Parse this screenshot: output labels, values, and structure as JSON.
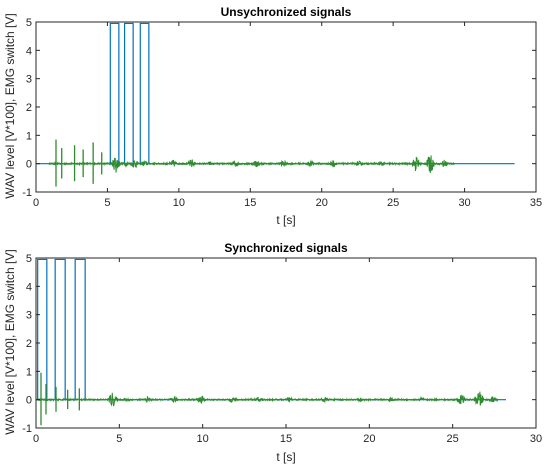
{
  "chart_data": [
    {
      "type": "line",
      "title": "Unsychronized signals",
      "xlabel": "t [s]",
      "ylabel": "WAV level [V*100], EMG switch [V]",
      "xlim": [
        0,
        35
      ],
      "ylim": [
        -1,
        5
      ],
      "xticks": [
        0,
        5,
        10,
        15,
        20,
        25,
        30,
        35
      ],
      "yticks": [
        -1,
        0,
        1,
        2,
        3,
        4,
        5
      ],
      "grid": false,
      "series": [
        {
          "color": "#0072bd",
          "x": [
            0,
            5.2,
            5.2,
            5.8,
            5.8,
            6.2,
            6.2,
            6.8,
            6.8,
            7.3,
            7.3,
            7.9,
            7.9,
            33.5
          ],
          "y": [
            0,
            0,
            4.95,
            4.95,
            0,
            0,
            4.95,
            4.95,
            0,
            0,
            4.95,
            4.95,
            0,
            0
          ]
        },
        {
          "color": "#2e8b2e",
          "spikes": [
            {
              "x": 1.4,
              "amp": 0.85
            },
            {
              "x": 1.8,
              "amp": 0.55
            },
            {
              "x": 2.7,
              "amp": 0.65
            },
            {
              "x": 3.3,
              "amp": 0.5
            },
            {
              "x": 4.0,
              "amp": 0.75
            },
            {
              "x": 4.6,
              "amp": 0.4
            }
          ],
          "bursts": [
            {
              "x": 5.6,
              "amp": 0.35
            },
            {
              "x": 6.3,
              "amp": 0.1
            },
            {
              "x": 6.9,
              "amp": 0.2
            },
            {
              "x": 7.6,
              "amp": 0.12
            },
            {
              "x": 9.6,
              "amp": 0.15
            },
            {
              "x": 10.9,
              "amp": 0.18
            },
            {
              "x": 12.2,
              "amp": 0.08
            },
            {
              "x": 14.0,
              "amp": 0.14
            },
            {
              "x": 15.4,
              "amp": 0.16
            },
            {
              "x": 17.3,
              "amp": 0.14
            },
            {
              "x": 19.2,
              "amp": 0.12
            },
            {
              "x": 20.8,
              "amp": 0.14
            },
            {
              "x": 22.6,
              "amp": 0.1
            },
            {
              "x": 24.2,
              "amp": 0.1
            },
            {
              "x": 26.6,
              "amp": 0.32
            },
            {
              "x": 27.6,
              "amp": 0.38
            },
            {
              "x": 28.6,
              "amp": 0.18
            }
          ],
          "range": [
            0.9,
            29.3
          ]
        }
      ]
    },
    {
      "type": "line",
      "title": "Synchronized signals",
      "xlabel": "t [s]",
      "ylabel": "WAV level [V*100], EMG switch [V]",
      "xlim": [
        0,
        30
      ],
      "ylim": [
        -1,
        5
      ],
      "xticks": [
        0,
        5,
        10,
        15,
        20,
        25,
        30
      ],
      "yticks": [
        -1,
        0,
        1,
        2,
        3,
        4,
        5
      ],
      "grid": false,
      "series": [
        {
          "color": "#0072bd",
          "x": [
            0,
            0.1,
            0.1,
            0.65,
            0.65,
            1.15,
            1.15,
            1.75,
            1.75,
            2.35,
            2.35,
            2.95,
            2.95,
            28.2
          ],
          "y": [
            0,
            0,
            4.95,
            4.95,
            0,
            0,
            4.95,
            4.95,
            0,
            0,
            4.95,
            4.95,
            0,
            0
          ]
        },
        {
          "color": "#2e8b2e",
          "spikes": [
            {
              "x": 0.3,
              "amp": 0.95
            },
            {
              "x": 0.6,
              "amp": 0.55
            },
            {
              "x": 1.2,
              "amp": 0.45
            },
            {
              "x": 1.9,
              "amp": 0.35
            },
            {
              "x": 2.6,
              "amp": 0.4
            }
          ],
          "bursts": [
            {
              "x": 4.6,
              "amp": 0.28
            },
            {
              "x": 5.5,
              "amp": 0.08
            },
            {
              "x": 6.7,
              "amp": 0.1
            },
            {
              "x": 8.3,
              "amp": 0.12
            },
            {
              "x": 9.9,
              "amp": 0.16
            },
            {
              "x": 11.8,
              "amp": 0.12
            },
            {
              "x": 13.4,
              "amp": 0.12
            },
            {
              "x": 15.2,
              "amp": 0.1
            },
            {
              "x": 17.3,
              "amp": 0.1
            },
            {
              "x": 19.5,
              "amp": 0.1
            },
            {
              "x": 21.3,
              "amp": 0.08
            },
            {
              "x": 23.1,
              "amp": 0.08
            },
            {
              "x": 25.5,
              "amp": 0.22
            },
            {
              "x": 26.6,
              "amp": 0.32
            },
            {
              "x": 27.4,
              "amp": 0.12
            }
          ],
          "range": [
            0.1,
            27.7
          ]
        }
      ]
    }
  ]
}
